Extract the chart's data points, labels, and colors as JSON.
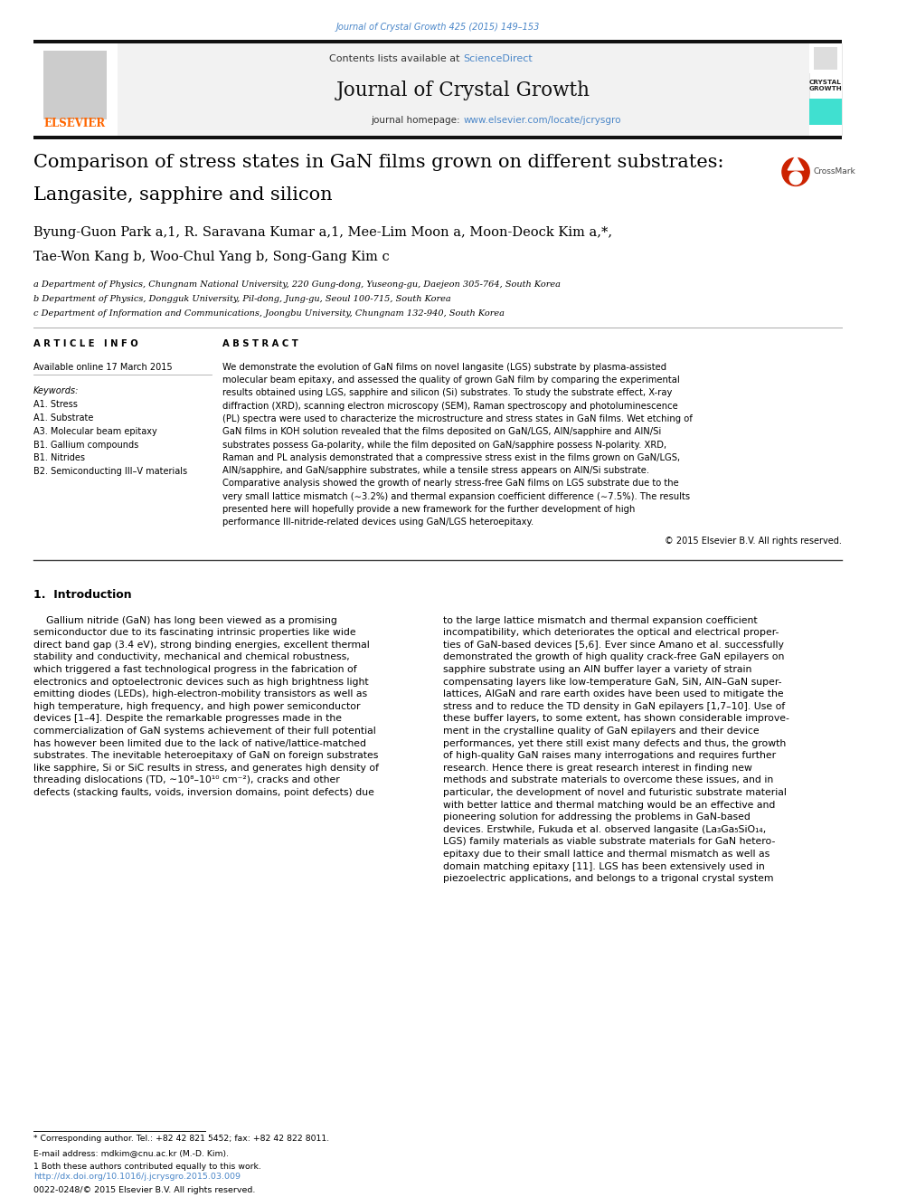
{
  "page_width": 9.92,
  "page_height": 13.23,
  "dpi": 100,
  "bg_color": "#ffffff",
  "journal_citation": "Journal of Crystal Growth 425 (2015) 149–153",
  "journal_citation_color": "#4a86c8",
  "sciencedirect_color": "#4a86c8",
  "journal_name": "Journal of Crystal Growth",
  "homepage_url": "www.elsevier.com/locate/jcrysgro",
  "homepage_url_color": "#4a86c8",
  "crystal_growth_label": "CRYSTAL\nGROWTH",
  "crystal_bg_color": "#40e0d0",
  "thick_bar_color": "#111111",
  "title_line1": "Comparison of stress states in GaN films grown on different substrates:",
  "title_line2": "Langasite, sapphire and silicon",
  "title_fontsize": 15.0,
  "authors_line1": "Byung-Guon Park a,1, R. Saravana Kumar a,1, Mee-Lim Moon a, Moon-Deock Kim a,*,",
  "authors_line2": "Tae-Won Kang b, Woo-Chul Yang b, Song-Gang Kim c",
  "authors_fontsize": 10.5,
  "affil_a": "a Department of Physics, Chungnam National University, 220 Gung-dong, Yuseong-gu, Daejeon 305-764, South Korea",
  "affil_b": "b Department of Physics, Dongguk University, Pil-dong, Jung-gu, Seoul 100-715, South Korea",
  "affil_c": "c Department of Information and Communications, Joongbu University, Chungnam 132-940, South Korea",
  "affil_fontsize": 7.0,
  "article_info_header": "A R T I C L E   I N F O",
  "abstract_header": "A B S T R A C T",
  "available_online": "Available online 17 March 2015",
  "keywords_header": "Keywords:",
  "keywords": [
    "A1. Stress",
    "A1. Substrate",
    "A3. Molecular beam epitaxy",
    "B1. Gallium compounds",
    "B1. Nitrides",
    "B2. Semiconducting III–V materials"
  ],
  "abstract_lines": [
    "We demonstrate the evolution of GaN films on novel langasite (LGS) substrate by plasma-assisted",
    "molecular beam epitaxy, and assessed the quality of grown GaN film by comparing the experimental",
    "results obtained using LGS, sapphire and silicon (Si) substrates. To study the substrate effect, X-ray",
    "diffraction (XRD), scanning electron microscopy (SEM), Raman spectroscopy and photoluminescence",
    "(PL) spectra were used to characterize the microstructure and stress states in GaN films. Wet etching of",
    "GaN films in KOH solution revealed that the films deposited on GaN/LGS, AlN/sapphire and AlN/Si",
    "substrates possess Ga-polarity, while the film deposited on GaN/sapphire possess N-polarity. XRD,",
    "Raman and PL analysis demonstrated that a compressive stress exist in the films grown on GaN/LGS,",
    "AlN/sapphire, and GaN/sapphire substrates, while a tensile stress appears on AlN/Si substrate.",
    "Comparative analysis showed the growth of nearly stress-free GaN films on LGS substrate due to the",
    "very small lattice mismatch (∼3.2%) and thermal expansion coefficient difference (∼7.5%). The results",
    "presented here will hopefully provide a new framework for the further development of high",
    "performance III-nitride-related devices using GaN/LGS heteroepitaxy."
  ],
  "copyright": "© 2015 Elsevier B.V. All rights reserved.",
  "intro_header": "1.  Introduction",
  "intro_col1_lines": [
    "    Gallium nitride (GaN) has long been viewed as a promising",
    "semiconductor due to its fascinating intrinsic properties like wide",
    "direct band gap (3.4 eV), strong binding energies, excellent thermal",
    "stability and conductivity, mechanical and chemical robustness,",
    "which triggered a fast technological progress in the fabrication of",
    "electronics and optoelectronic devices such as high brightness light",
    "emitting diodes (LEDs), high-electron-mobility transistors as well as",
    "high temperature, high frequency, and high power semiconductor",
    "devices [1–4]. Despite the remarkable progresses made in the",
    "commercialization of GaN systems achievement of their full potential",
    "has however been limited due to the lack of native/lattice-matched",
    "substrates. The inevitable heteroepitaxy of GaN on foreign substrates",
    "like sapphire, Si or SiC results in stress, and generates high density of",
    "threading dislocations (TD, ∼10⁸–10¹⁰ cm⁻²), cracks and other",
    "defects (stacking faults, voids, inversion domains, point defects) due"
  ],
  "intro_col2_lines": [
    "to the large lattice mismatch and thermal expansion coefficient",
    "incompatibility, which deteriorates the optical and electrical proper-",
    "ties of GaN-based devices [5,6]. Ever since Amano et al. successfully",
    "demonstrated the growth of high quality crack-free GaN epilayers on",
    "sapphire substrate using an AlN buffer layer a variety of strain",
    "compensating layers like low-temperature GaN, SiN, AlN–GaN super-",
    "lattices, AlGaN and rare earth oxides have been used to mitigate the",
    "stress and to reduce the TD density in GaN epilayers [1,7–10]. Use of",
    "these buffer layers, to some extent, has shown considerable improve-",
    "ment in the crystalline quality of GaN epilayers and their device",
    "performances, yet there still exist many defects and thus, the growth",
    "of high-quality GaN raises many interrogations and requires further",
    "research. Hence there is great research interest in finding new",
    "methods and substrate materials to overcome these issues, and in",
    "particular, the development of novel and futuristic substrate material",
    "with better lattice and thermal matching would be an effective and",
    "pioneering solution for addressing the problems in GaN-based",
    "devices. Erstwhile, Fukuda et al. observed langasite (La₃Ga₅SiO₁₄,",
    "LGS) family materials as viable substrate materials for GaN hetero-",
    "epitaxy due to their small lattice and thermal mismatch as well as",
    "domain matching epitaxy [11]. LGS has been extensively used in",
    "piezoelectric applications, and belongs to a trigonal crystal system"
  ],
  "footnote_corresponding": "* Corresponding author. Tel.: +82 42 821 5452; fax: +82 42 822 8011.",
  "footnote_email": "E-mail address: mdkim@cnu.ac.kr (M.-D. Kim).",
  "footnote_equal": "1 Both these authors contributed equally to this work.",
  "doi_text": "http://dx.doi.org/10.1016/j.jcrysgro.2015.03.009",
  "doi_color": "#4a86c8",
  "issn_text": "0022-0248/© 2015 Elsevier B.V. All rights reserved.",
  "elsevier_orange": "#ff6600",
  "text_color": "#000000",
  "body_fontsize": 7.8,
  "header_gray": "#f2f2f2",
  "header_border": "#dddddd"
}
